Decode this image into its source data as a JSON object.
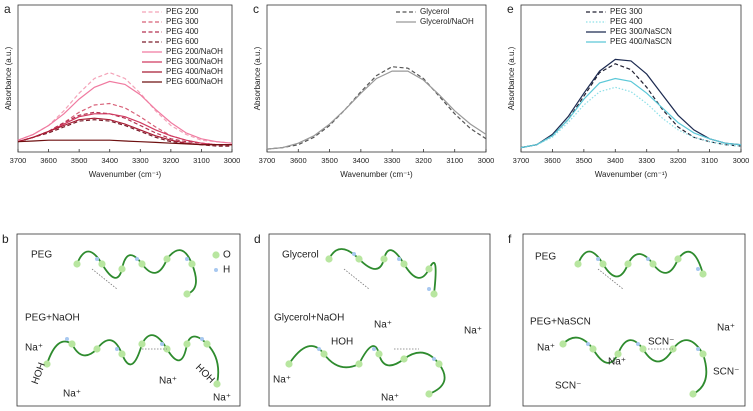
{
  "chart_data": [
    {
      "type": "line",
      "label": "a",
      "xlabel": "Wavenumber (cm⁻¹)",
      "ylabel": "Absorbance (a.u.)",
      "legend": "upper right",
      "x": [
        3700,
        3650,
        3600,
        3550,
        3500,
        3450,
        3400,
        3350,
        3300,
        3250,
        3200,
        3150,
        3100,
        3050,
        3000
      ],
      "xlim": [
        3700,
        3000
      ],
      "xticks": [
        3700,
        3600,
        3500,
        3400,
        3300,
        3200,
        3100,
        3000
      ],
      "ylim": [
        0,
        1
      ],
      "series": [
        {
          "name": "PEG 200",
          "color": "#f4a3b8",
          "dash": "dashed",
          "values": [
            0.08,
            0.12,
            0.18,
            0.28,
            0.4,
            0.5,
            0.54,
            0.5,
            0.4,
            0.28,
            0.18,
            0.12,
            0.08,
            0.07,
            0.06
          ]
        },
        {
          "name": "PEG 300",
          "color": "#d86078",
          "dash": "dashed",
          "values": [
            0.07,
            0.1,
            0.14,
            0.2,
            0.27,
            0.32,
            0.33,
            0.3,
            0.24,
            0.17,
            0.11,
            0.08,
            0.06,
            0.05,
            0.05
          ]
        },
        {
          "name": "PEG 400",
          "color": "#b43250",
          "dash": "dashed",
          "values": [
            0.07,
            0.1,
            0.14,
            0.2,
            0.25,
            0.27,
            0.26,
            0.23,
            0.18,
            0.13,
            0.09,
            0.07,
            0.06,
            0.05,
            0.05
          ]
        },
        {
          "name": "PEG 600",
          "color": "#7a1c2a",
          "dash": "dashed",
          "values": [
            0.07,
            0.1,
            0.13,
            0.17,
            0.21,
            0.22,
            0.21,
            0.18,
            0.14,
            0.1,
            0.07,
            0.06,
            0.05,
            0.04,
            0.04
          ]
        },
        {
          "name": "PEG 200/NaOH",
          "color": "#f07aa0",
          "dash": "solid",
          "values": [
            0.08,
            0.12,
            0.18,
            0.26,
            0.36,
            0.44,
            0.48,
            0.46,
            0.39,
            0.29,
            0.2,
            0.13,
            0.09,
            0.07,
            0.06
          ]
        },
        {
          "name": "PEG 300/NaOH",
          "color": "#d03a60",
          "dash": "solid",
          "values": [
            0.07,
            0.1,
            0.14,
            0.19,
            0.24,
            0.26,
            0.26,
            0.24,
            0.2,
            0.15,
            0.11,
            0.08,
            0.06,
            0.05,
            0.05
          ]
        },
        {
          "name": "PEG 400/NaOH",
          "color": "#a81c34",
          "dash": "solid",
          "values": [
            0.07,
            0.1,
            0.14,
            0.18,
            0.22,
            0.23,
            0.22,
            0.19,
            0.15,
            0.11,
            0.08,
            0.06,
            0.05,
            0.05,
            0.05
          ]
        },
        {
          "name": "PEG 600/NaOH",
          "color": "#6e1010",
          "dash": "solid",
          "values": [
            0.07,
            0.075,
            0.08,
            0.08,
            0.08,
            0.08,
            0.08,
            0.075,
            0.07,
            0.065,
            0.06,
            0.055,
            0.05,
            0.05,
            0.05
          ]
        }
      ]
    },
    {
      "type": "line",
      "label": "c",
      "xlabel": "Wavenumber (cm⁻¹)",
      "ylabel": "Absorbance (a.u.)",
      "legend": "upper right",
      "x": [
        3700,
        3650,
        3600,
        3550,
        3500,
        3450,
        3400,
        3350,
        3300,
        3250,
        3200,
        3150,
        3100,
        3050,
        3000
      ],
      "xlim": [
        3700,
        3000
      ],
      "xticks": [
        3700,
        3600,
        3500,
        3400,
        3300,
        3200,
        3100,
        3000
      ],
      "ylim": [
        0,
        1
      ],
      "series": [
        {
          "name": "Glycerol",
          "color": "#555555",
          "dash": "dashed",
          "values": [
            0.02,
            0.03,
            0.05,
            0.1,
            0.18,
            0.29,
            0.41,
            0.52,
            0.58,
            0.57,
            0.5,
            0.38,
            0.26,
            0.16,
            0.09
          ]
        },
        {
          "name": "Glycerol/NaOH",
          "color": "#999999",
          "dash": "solid",
          "values": [
            0.02,
            0.03,
            0.06,
            0.11,
            0.19,
            0.29,
            0.4,
            0.5,
            0.55,
            0.55,
            0.49,
            0.39,
            0.28,
            0.19,
            0.12
          ]
        }
      ]
    },
    {
      "type": "line",
      "label": "e",
      "xlabel": "Wavenumber (cm⁻¹)",
      "ylabel": "Absorbance (a.u.)",
      "legend": "upper center",
      "x": [
        3700,
        3650,
        3600,
        3550,
        3500,
        3450,
        3400,
        3350,
        3300,
        3250,
        3200,
        3150,
        3100,
        3050,
        3000
      ],
      "xlim": [
        3700,
        3000
      ],
      "xticks": [
        3700,
        3600,
        3500,
        3400,
        3300,
        3200,
        3100,
        3000
      ],
      "ylim": [
        0,
        1
      ],
      "series": [
        {
          "name": "PEG 300",
          "color": "#222233",
          "dash": "dashed",
          "values": [
            0.03,
            0.05,
            0.11,
            0.22,
            0.38,
            0.54,
            0.6,
            0.56,
            0.44,
            0.29,
            0.17,
            0.1,
            0.07,
            0.05,
            0.04
          ]
        },
        {
          "name": "PEG 400",
          "color": "#8ee0e8",
          "dash": "dotted",
          "values": [
            0.03,
            0.05,
            0.1,
            0.2,
            0.32,
            0.41,
            0.44,
            0.41,
            0.33,
            0.23,
            0.15,
            0.1,
            0.07,
            0.05,
            0.04
          ]
        },
        {
          "name": "PEG 300/NaSCN",
          "color": "#1c2a50",
          "dash": "solid",
          "values": [
            0.03,
            0.05,
            0.12,
            0.24,
            0.4,
            0.55,
            0.63,
            0.62,
            0.53,
            0.39,
            0.25,
            0.15,
            0.09,
            0.06,
            0.05
          ]
        },
        {
          "name": "PEG 400/NaSCN",
          "color": "#5cc8d8",
          "dash": "solid",
          "values": [
            0.03,
            0.05,
            0.11,
            0.22,
            0.36,
            0.47,
            0.5,
            0.48,
            0.4,
            0.3,
            0.2,
            0.13,
            0.09,
            0.06,
            0.05
          ]
        }
      ]
    }
  ],
  "diagrams": [
    {
      "label": "b",
      "texts": [
        "PEG",
        "O",
        "H",
        "PEG+NaOH",
        "Na⁺",
        "HOH",
        "Na⁺",
        "Na⁺",
        "HOH",
        "Na⁺"
      ]
    },
    {
      "label": "d",
      "texts": [
        "Glycerol",
        "Glycerol+NaOH",
        "HOH",
        "Na⁺",
        "Na⁺",
        "Na⁺",
        "Na⁺"
      ]
    },
    {
      "label": "f",
      "texts": [
        "PEG",
        "PEG+NaSCN",
        "Na⁺",
        "SCN⁻",
        "Na⁺",
        "SCN⁻",
        "Na⁺",
        "SCN⁻"
      ]
    }
  ]
}
